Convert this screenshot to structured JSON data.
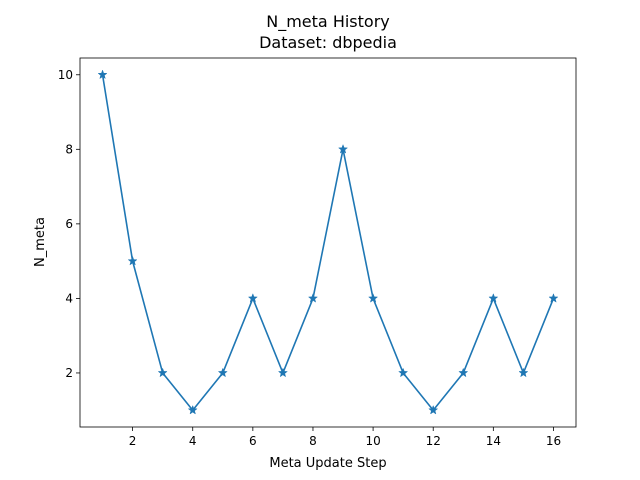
{
  "chart_data": {
    "type": "line",
    "title": "N_meta History",
    "subtitle": "Dataset: dbpedia",
    "xlabel": "Meta Update Step",
    "ylabel": "N_meta",
    "x": [
      1,
      2,
      3,
      4,
      5,
      6,
      7,
      8,
      9,
      10,
      11,
      12,
      13,
      14,
      15,
      16
    ],
    "series": [
      {
        "values": [
          10,
          5,
          2,
          1,
          2,
          4,
          2,
          4,
          8,
          4,
          2,
          1,
          2,
          4,
          2,
          4
        ]
      }
    ],
    "xlim": [
      0.25,
      16.75
    ],
    "ylim": [
      0.55,
      10.45
    ],
    "xticks": [
      "2",
      "4",
      "6",
      "8",
      "10",
      "12",
      "14",
      "16"
    ],
    "yticks": [
      "2",
      "4",
      "6",
      "8",
      "10"
    ],
    "marker": "star",
    "line_color": "#1f77b4",
    "grid": false,
    "legend": "none"
  }
}
